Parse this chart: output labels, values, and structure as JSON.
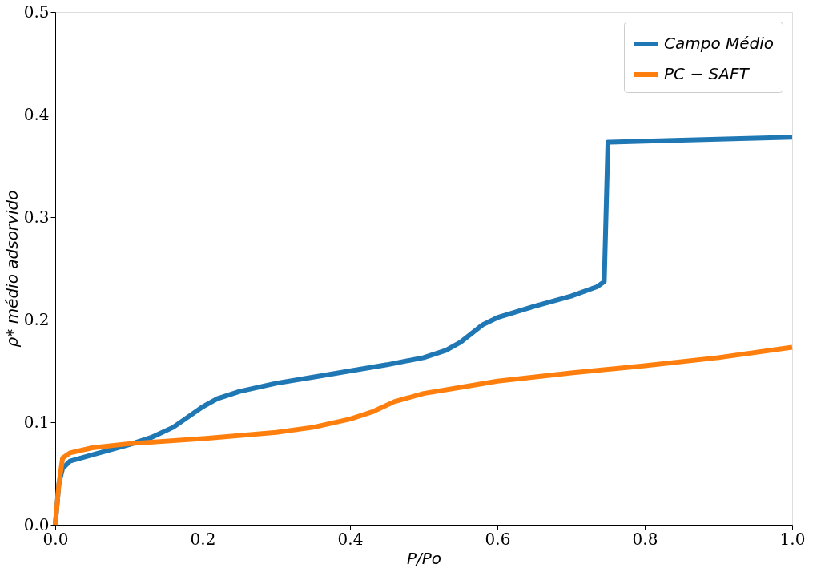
{
  "chart_data": {
    "type": "line",
    "xlabel": "P/Po",
    "ylabel": "ρ* médio adsorvido",
    "xlim": [
      0,
      1
    ],
    "ylim": [
      0,
      0.5
    ],
    "xticks": [
      {
        "value": 0,
        "label": "0.0"
      },
      0.2,
      0.4,
      0.6,
      0.8,
      {
        "value": 1,
        "label": "1.0"
      }
    ],
    "yticks": [
      {
        "value": 0,
        "label": "0.0"
      },
      0.1,
      0.2,
      0.3,
      0.4,
      0.5
    ],
    "grid": false,
    "legend": "top right",
    "line_style": "solid",
    "marker": "none",
    "series": [
      {
        "name": "Campo Médio",
        "color": "#1f77b4",
        "x": [
          0,
          0.005,
          0.01,
          0.02,
          0.05,
          0.1,
          0.13,
          0.16,
          0.18,
          0.2,
          0.22,
          0.25,
          0.3,
          0.35,
          0.4,
          0.45,
          0.5,
          0.53,
          0.55,
          0.58,
          0.6,
          0.65,
          0.7,
          0.735,
          0.745,
          0.75,
          0.8,
          0.9,
          1.0
        ],
        "values": [
          0,
          0.04,
          0.055,
          0.062,
          0.068,
          0.078,
          0.085,
          0.095,
          0.105,
          0.115,
          0.123,
          0.13,
          0.138,
          0.144,
          0.15,
          0.156,
          0.163,
          0.17,
          0.178,
          0.195,
          0.202,
          0.213,
          0.223,
          0.232,
          0.237,
          0.373,
          0.374,
          0.376,
          0.378
        ]
      },
      {
        "name": "PC − SAFT",
        "color": "#ff7f0e",
        "x": [
          0,
          0.005,
          0.01,
          0.02,
          0.05,
          0.1,
          0.2,
          0.3,
          0.35,
          0.4,
          0.43,
          0.46,
          0.5,
          0.55,
          0.6,
          0.7,
          0.8,
          0.9,
          1.0
        ],
        "values": [
          0,
          0.04,
          0.065,
          0.07,
          0.075,
          0.079,
          0.084,
          0.09,
          0.095,
          0.103,
          0.11,
          0.12,
          0.128,
          0.134,
          0.14,
          0.148,
          0.155,
          0.163,
          0.173
        ]
      }
    ]
  }
}
